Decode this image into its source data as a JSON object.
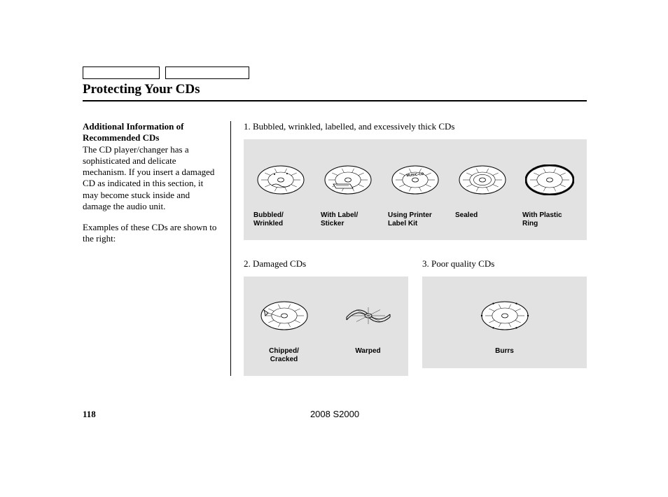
{
  "colors": {
    "panel_bg": "#e2e2e2",
    "text": "#000000",
    "page_bg": "#ffffff",
    "cd_stroke": "#000000",
    "cd_fill": "#ffffff"
  },
  "title": "Protecting Your CDs",
  "left": {
    "heading": "Additional Information of Recommended CDs",
    "para1": "The CD player/changer has a sophisticated and delicate mechanism. If you insert a damaged CD as indicated in this section, it may become stuck inside and damage the audio unit.",
    "para2": "Examples of these CDs are shown to the right:"
  },
  "section1": {
    "label": "1. Bubbled, wrinkled, labelled, and excessively thick CDs",
    "items": [
      {
        "label": "Bubbled/ Wrinkled",
        "variant": "bubbled"
      },
      {
        "label": "With Label/ Sticker",
        "variant": "sticker"
      },
      {
        "label": "Using Printer Label Kit",
        "variant": "printer"
      },
      {
        "label": "Sealed",
        "variant": "sealed"
      },
      {
        "label": "With Plastic Ring",
        "variant": "ring"
      }
    ]
  },
  "section2": {
    "label": "2. Damaged CDs",
    "items": [
      {
        "label": "Chipped/ Cracked",
        "variant": "chipped"
      },
      {
        "label": "Warped",
        "variant": "warped"
      }
    ]
  },
  "section3": {
    "label": "3.   Poor quality CDs",
    "items": [
      {
        "label": "Burrs",
        "variant": "burrs"
      }
    ]
  },
  "footer": {
    "page_number": "118",
    "model": "2008  S2000"
  }
}
